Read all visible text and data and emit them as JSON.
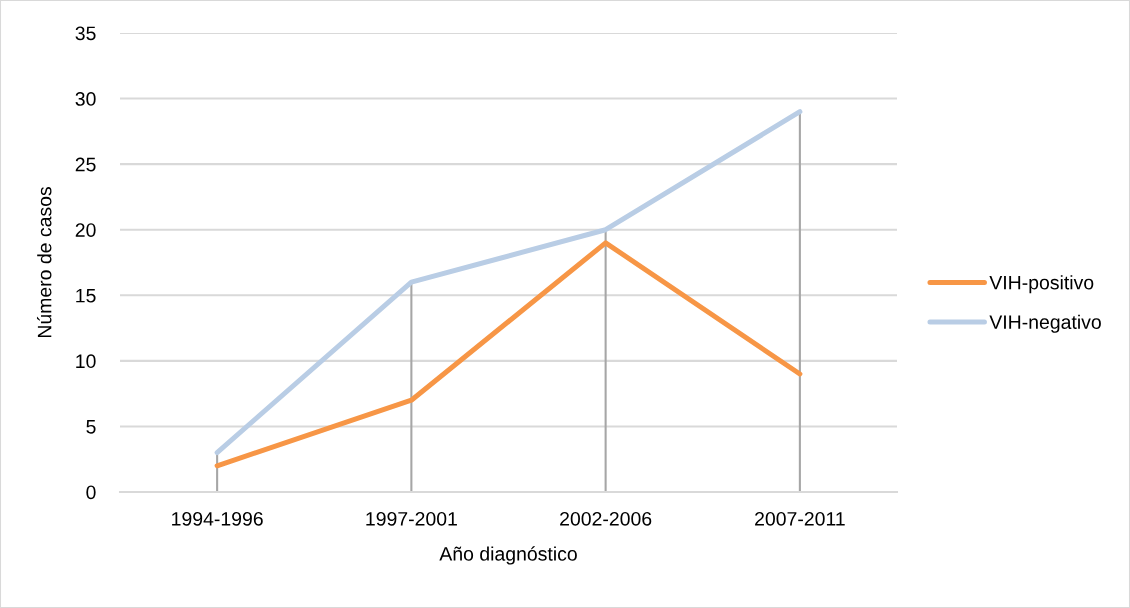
{
  "chart_data": {
    "type": "line",
    "xlabel": "Año diagnóstico",
    "ylabel": "Número de casos",
    "categories": [
      "1994-1996",
      "1997-2001",
      "2002-2006",
      "2007-2011"
    ],
    "series": [
      {
        "name": "VIH-positivo",
        "color": "#f79646",
        "values": [
          2,
          7,
          19,
          9
        ]
      },
      {
        "name": "VIH-negativo",
        "color": "#b9cde5",
        "values": [
          3,
          16,
          20,
          29
        ]
      }
    ],
    "ylim": [
      0,
      35
    ],
    "yticks": [
      0,
      5,
      10,
      15,
      20,
      25,
      30,
      35
    ],
    "grid": "y",
    "legend": "right",
    "line_style": "solid",
    "ref_lines": [
      {
        "axis": "x",
        "value": "1994-1996",
        "color": "#a6a6a6"
      },
      {
        "axis": "x",
        "value": "1997-2001",
        "color": "#a6a6a6"
      },
      {
        "axis": "x",
        "value": "2002-2006",
        "color": "#a6a6a6"
      },
      {
        "axis": "x",
        "value": "2007-2011",
        "color": "#a6a6a6"
      }
    ]
  }
}
